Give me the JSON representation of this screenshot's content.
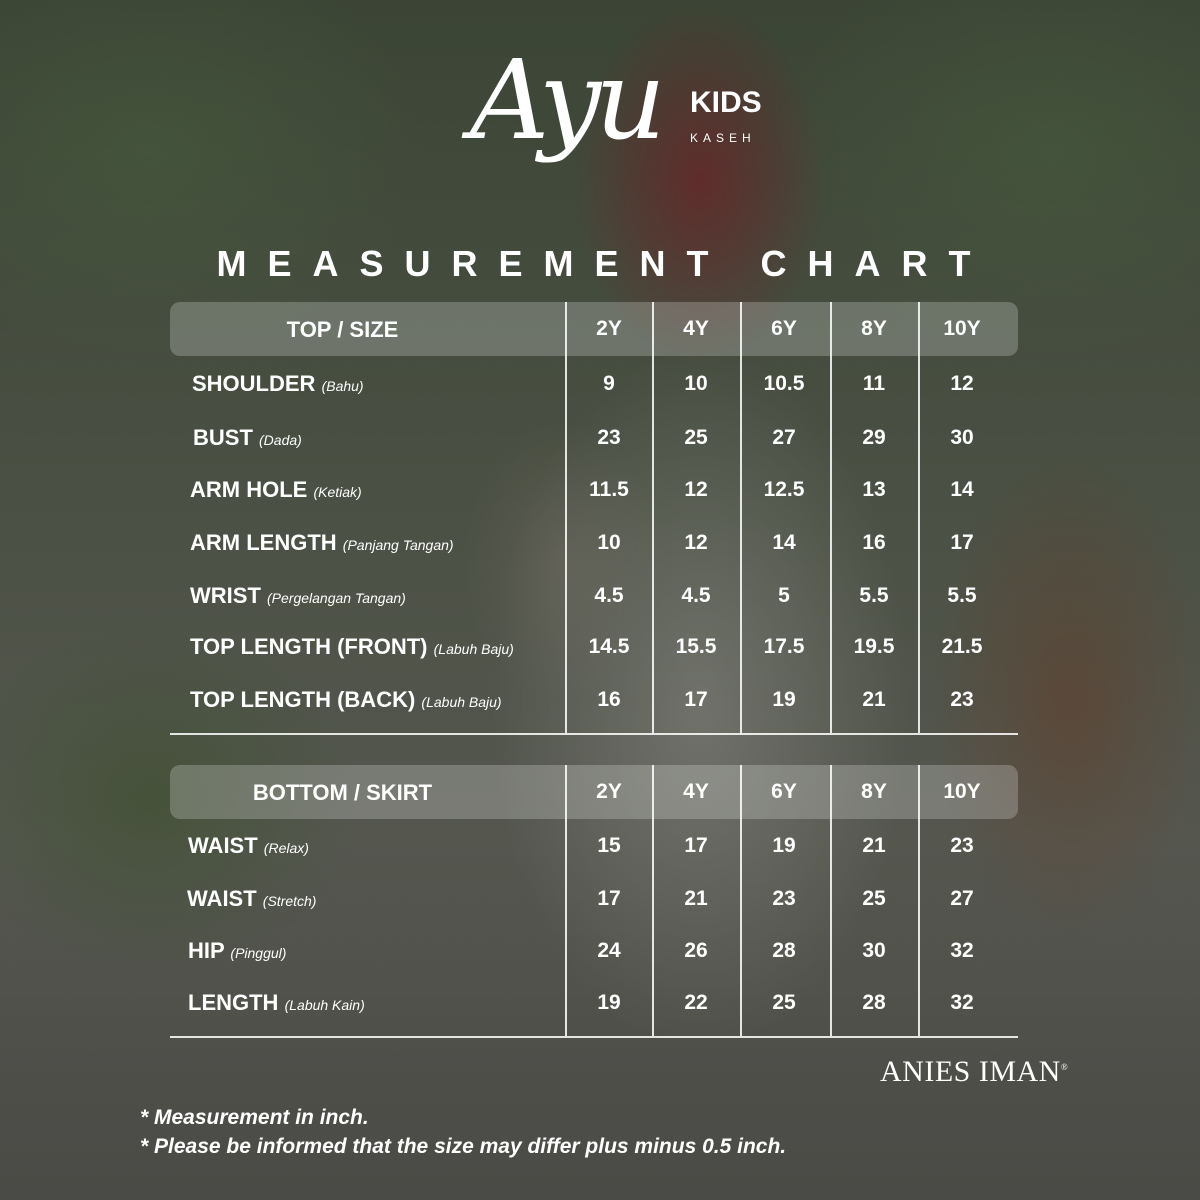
{
  "logo": {
    "script": "Ayu",
    "kids": "KIDS",
    "kaseh": "KASEH"
  },
  "title": "MEASUREMENT CHART",
  "sizes": [
    "2Y",
    "4Y",
    "6Y",
    "8Y",
    "10Y"
  ],
  "top": {
    "header": "TOP / SIZE",
    "rows": [
      {
        "label": "SHOULDER",
        "sub": "(Bahu)",
        "values": [
          "9",
          "10",
          "10.5",
          "11",
          "12"
        ]
      },
      {
        "label": "BUST",
        "sub": "(Dada)",
        "values": [
          "23",
          "25",
          "27",
          "29",
          "30"
        ]
      },
      {
        "label": "ARM HOLE",
        "sub": "(Ketiak)",
        "values": [
          "11.5",
          "12",
          "12.5",
          "13",
          "14"
        ]
      },
      {
        "label": "ARM LENGTH",
        "sub": "(Panjang Tangan)",
        "values": [
          "10",
          "12",
          "14",
          "16",
          "17"
        ]
      },
      {
        "label": "WRIST",
        "sub": "(Pergelangan Tangan)",
        "values": [
          "4.5",
          "4.5",
          "5",
          "5.5",
          "5.5"
        ]
      },
      {
        "label": "TOP LENGTH (FRONT)",
        "sub": "(Labuh Baju)",
        "values": [
          "14.5",
          "15.5",
          "17.5",
          "19.5",
          "21.5"
        ]
      },
      {
        "label": "TOP LENGTH (BACK)",
        "sub": "(Labuh Baju)",
        "values": [
          "16",
          "17",
          "19",
          "21",
          "23"
        ]
      }
    ]
  },
  "bottom": {
    "header": "BOTTOM / SKIRT",
    "rows": [
      {
        "label": "WAIST",
        "sub": "(Relax)",
        "values": [
          "15",
          "17",
          "19",
          "21",
          "23"
        ]
      },
      {
        "label": "WAIST",
        "sub": "(Stretch)",
        "values": [
          "17",
          "21",
          "23",
          "25",
          "27"
        ]
      },
      {
        "label": "HIP",
        "sub": "(Pinggul)",
        "values": [
          "24",
          "26",
          "28",
          "30",
          "32"
        ]
      },
      {
        "label": "LENGTH",
        "sub": "(Labuh Kain)",
        "values": [
          "19",
          "22",
          "25",
          "28",
          "32"
        ]
      }
    ]
  },
  "brand": {
    "name": "ANIES IMAN",
    "mark": "®"
  },
  "notes": [
    "* Measurement in inch.",
    "* Please be informed that the size may differ plus minus 0.5 inch."
  ]
}
